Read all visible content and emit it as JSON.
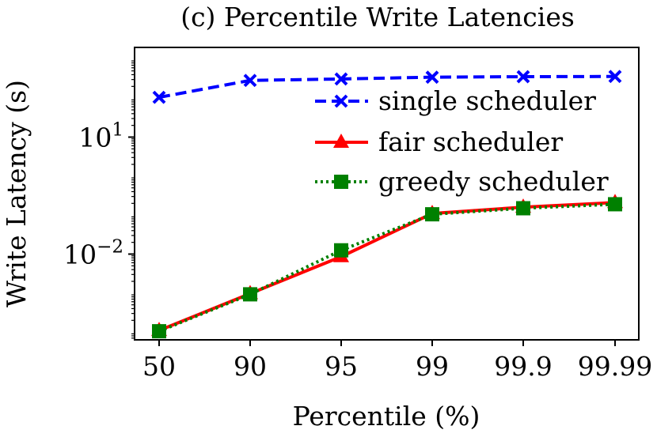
{
  "chart_data": {
    "type": "line",
    "title": "(c) Percentile Write Latencies",
    "xlabel": "Percentile (%)",
    "ylabel": "Write Latency (s)",
    "yscale": "log",
    "ylim": [
      6.32e-05,
      2000
    ],
    "categories": [
      "50",
      "90",
      "95",
      "99",
      "99.9",
      "99.99"
    ],
    "yticks": [
      {
        "value": 10,
        "base": "10",
        "exp": "1"
      },
      {
        "value": 0.01,
        "base": "10",
        "exp": "−2"
      }
    ],
    "legend": "upper right",
    "series": [
      {
        "name": "single scheduler",
        "color": "#0000ff",
        "style": "dashed",
        "marker": "x",
        "values": [
          105,
          285,
          310,
          345,
          355,
          360
        ]
      },
      {
        "name": "fair scheduler",
        "color": "#ff0000",
        "style": "solid",
        "marker": "triangle",
        "values": [
          0.00011,
          0.00097,
          0.0086,
          0.11,
          0.16,
          0.21
        ]
      },
      {
        "name": "greedy scheduler",
        "color": "#008000",
        "style": "dotted",
        "marker": "square",
        "values": [
          0.000105,
          0.00093,
          0.0125,
          0.105,
          0.15,
          0.19
        ]
      }
    ]
  }
}
